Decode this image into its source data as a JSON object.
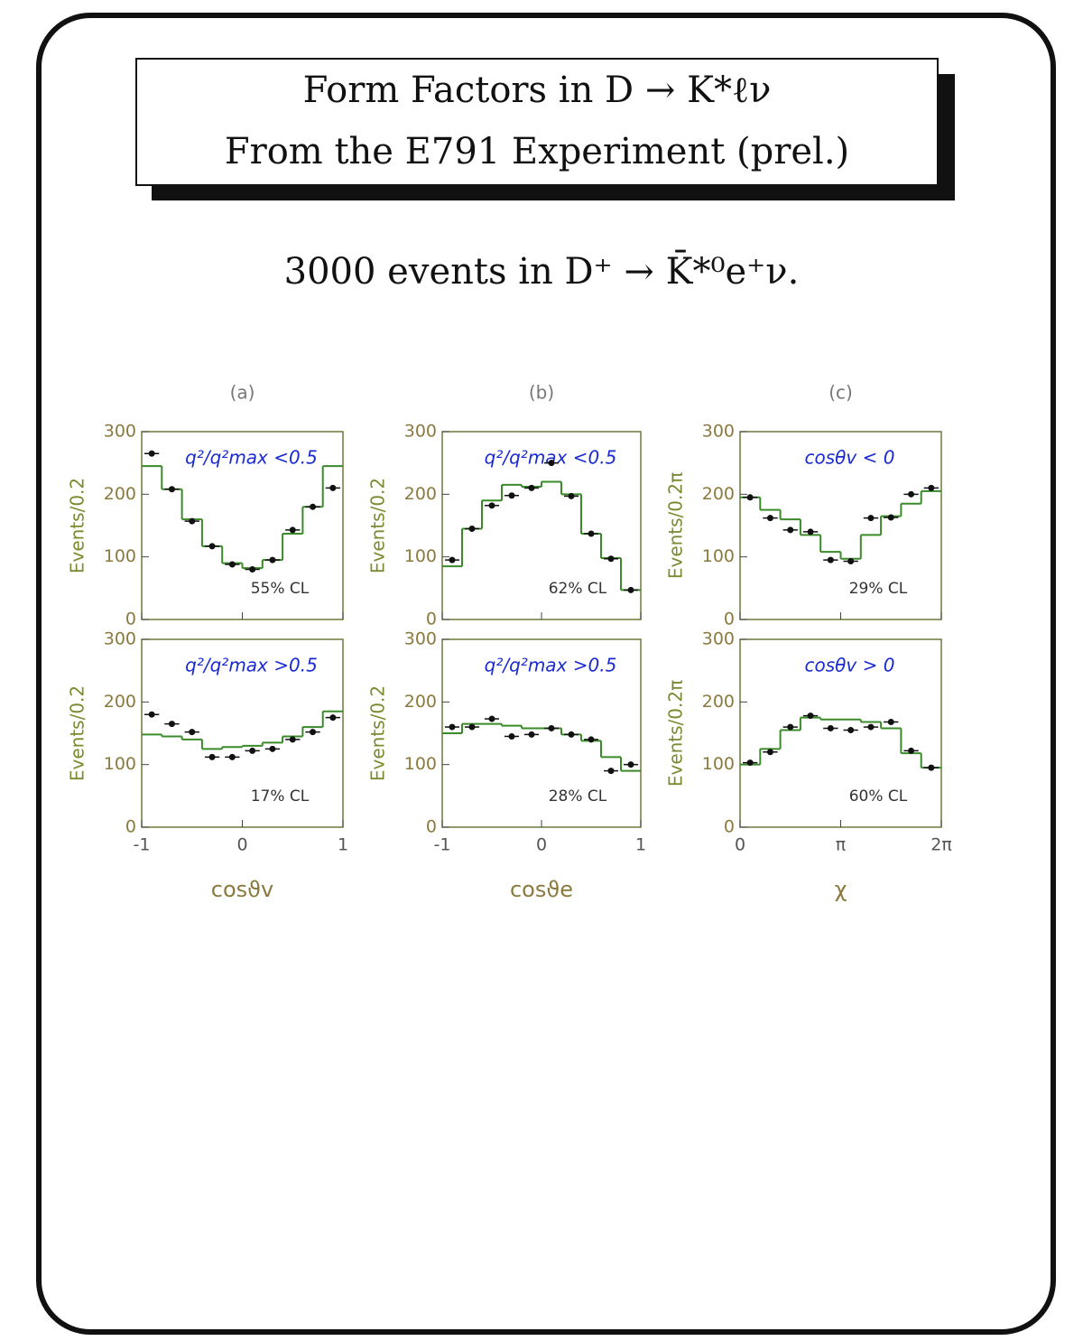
{
  "slide": {
    "title": [
      "Form Factors in D → K*ℓν",
      "From the E791 Experiment (prel.)"
    ],
    "subtitle": "3000 events in D⁺ → K̄*⁰e⁺ν."
  },
  "chart_data": [
    {
      "type": "histogram",
      "title": "(a)",
      "ylabel": "Events/0.2",
      "note": "q²/q²max <0.5",
      "cl": "55% CL",
      "bins": [
        -1,
        -0.8,
        -0.6,
        -0.4,
        -0.2,
        0,
        0.2,
        0.4,
        0.6,
        0.8,
        1
      ],
      "xlim": [
        -1,
        1
      ],
      "xticks": [
        -1,
        0,
        1
      ],
      "ylim": [
        0,
        300
      ],
      "yticks": [
        0,
        100,
        200,
        300
      ],
      "series": [
        {
          "style": "step",
          "color": "#3a8a2a",
          "values": [
            245,
            208,
            160,
            117,
            90,
            82,
            95,
            137,
            180,
            245
          ]
        },
        {
          "style": "points",
          "color": "#111111",
          "values": [
            265,
            208,
            157,
            117,
            88,
            80,
            95,
            143,
            180,
            210
          ]
        }
      ]
    },
    {
      "type": "histogram",
      "title": "(b)",
      "ylabel": "Events/0.2",
      "note": "q²/q²max <0.5",
      "cl": "62% CL",
      "bins": [
        -1,
        -0.8,
        -0.6,
        -0.4,
        -0.2,
        0,
        0.2,
        0.4,
        0.6,
        0.8,
        1
      ],
      "xlim": [
        -1,
        1
      ],
      "xticks": [
        -1,
        0,
        1
      ],
      "ylim": [
        0,
        300
      ],
      "yticks": [
        0,
        100,
        200,
        300
      ],
      "series": [
        {
          "style": "step",
          "color": "#3a8a2a",
          "values": [
            85,
            145,
            190,
            215,
            212,
            220,
            200,
            137,
            98,
            47
          ]
        },
        {
          "style": "points",
          "color": "#111111",
          "values": [
            95,
            145,
            182,
            198,
            210,
            250,
            197,
            137,
            97,
            47
          ]
        }
      ]
    },
    {
      "type": "histogram",
      "title": "(c)",
      "ylabel": "Events/0.2π",
      "note": "cosθv < 0",
      "cl": "29% CL",
      "bins": [
        0,
        0.6283,
        1.2566,
        1.885,
        2.5133,
        3.1416,
        3.7699,
        4.3982,
        5.0265,
        5.6549,
        6.2832
      ],
      "xlim": [
        0,
        6.2832
      ],
      "xticks": [
        0,
        {
          "value": 3.1416,
          "label": "π"
        },
        {
          "value": 6.2832,
          "label": "2π"
        }
      ],
      "ylim": [
        0,
        300
      ],
      "yticks": [
        0,
        100,
        200,
        300
      ],
      "series": [
        {
          "style": "step",
          "color": "#3a8a2a",
          "values": [
            195,
            175,
            160,
            135,
            108,
            97,
            135,
            165,
            185,
            205
          ]
        },
        {
          "style": "points",
          "color": "#111111",
          "values": [
            195,
            162,
            143,
            140,
            95,
            93,
            162,
            163,
            200,
            210
          ]
        }
      ]
    },
    {
      "type": "histogram",
      "xlabel": "cosϑv",
      "ylabel": "Events/0.2",
      "note": "q²/q²max >0.5",
      "cl": "17% CL",
      "bins": [
        -1,
        -0.8,
        -0.6,
        -0.4,
        -0.2,
        0,
        0.2,
        0.4,
        0.6,
        0.8,
        1
      ],
      "xlim": [
        -1,
        1
      ],
      "xticks": [
        -1,
        0,
        1
      ],
      "ylim": [
        0,
        300
      ],
      "yticks": [
        0,
        100,
        200,
        300
      ],
      "series": [
        {
          "style": "step",
          "color": "#3a8a2a",
          "values": [
            148,
            145,
            140,
            125,
            128,
            130,
            135,
            145,
            160,
            185
          ]
        },
        {
          "style": "points",
          "color": "#111111",
          "values": [
            180,
            165,
            152,
            112,
            112,
            122,
            125,
            140,
            152,
            175
          ]
        }
      ]
    },
    {
      "type": "histogram",
      "xlabel": "cosϑe",
      "ylabel": "Events/0.2",
      "note": "q²/q²max >0.5",
      "cl": "28% CL",
      "bins": [
        -1,
        -0.8,
        -0.6,
        -0.4,
        -0.2,
        0,
        0.2,
        0.4,
        0.6,
        0.8,
        1
      ],
      "xlim": [
        -1,
        1
      ],
      "xticks": [
        -1,
        0,
        1
      ],
      "ylim": [
        0,
        300
      ],
      "yticks": [
        0,
        100,
        200,
        300
      ],
      "series": [
        {
          "style": "step",
          "color": "#3a8a2a",
          "values": [
            150,
            165,
            165,
            162,
            158,
            158,
            148,
            138,
            112,
            90
          ]
        },
        {
          "style": "points",
          "color": "#111111",
          "values": [
            160,
            160,
            173,
            145,
            148,
            158,
            148,
            140,
            90,
            100
          ]
        }
      ]
    },
    {
      "type": "histogram",
      "xlabel": "χ",
      "ylabel": "Events/0.2π",
      "note": "cosθv > 0",
      "cl": "60% CL",
      "bins": [
        0,
        0.6283,
        1.2566,
        1.885,
        2.5133,
        3.1416,
        3.7699,
        4.3982,
        5.0265,
        5.6549,
        6.2832
      ],
      "xlim": [
        0,
        6.2832
      ],
      "xticks": [
        0,
        {
          "value": 3.1416,
          "label": "π"
        },
        {
          "value": 6.2832,
          "label": "2π"
        }
      ],
      "ylim": [
        0,
        300
      ],
      "yticks": [
        0,
        100,
        200,
        300
      ],
      "series": [
        {
          "style": "step",
          "color": "#3a8a2a",
          "values": [
            100,
            125,
            155,
            175,
            172,
            172,
            168,
            158,
            118,
            95
          ]
        },
        {
          "style": "points",
          "color": "#111111",
          "values": [
            103,
            120,
            160,
            178,
            158,
            155,
            160,
            168,
            122,
            95
          ]
        }
      ]
    }
  ]
}
